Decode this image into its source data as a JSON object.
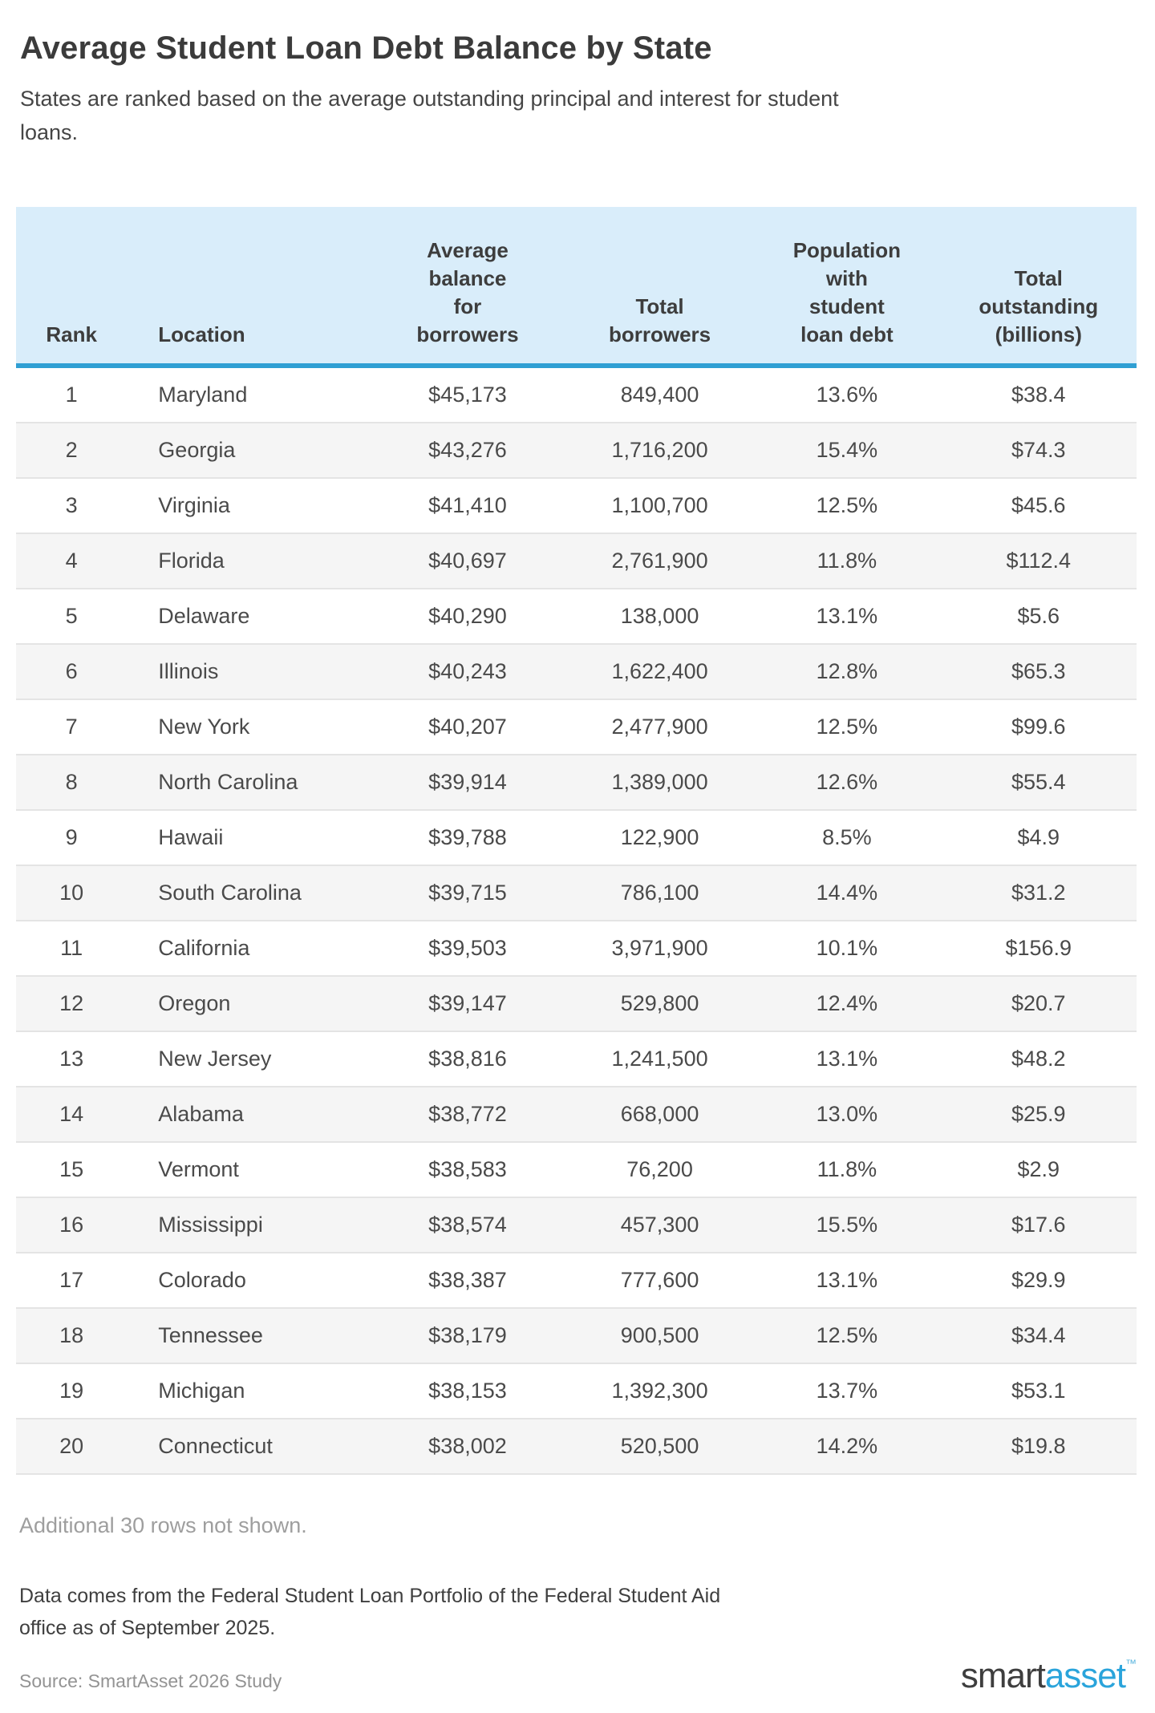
{
  "page": {
    "title": "Average Student Loan Debt Balance by State",
    "subtitle": "States are ranked based on the average outstanding principal and interest for student loans."
  },
  "chart_data": {
    "type": "table",
    "title": "Average Student Loan Debt Balance by State",
    "columns": [
      "Rank",
      "Location",
      "Average\nbalance\nfor\nborrowers",
      "Total\nborrowers",
      "Population\nwith\nstudent\nloan debt",
      "Total\noutstanding\n(billions)"
    ],
    "column_keys": [
      "rank",
      "location",
      "avg-balance",
      "total-borrowers",
      "population-with-debt",
      "total-outstanding"
    ],
    "rows": [
      [
        "1",
        "Maryland",
        "$45,173",
        "849,400",
        "13.6%",
        "$38.4"
      ],
      [
        "2",
        "Georgia",
        "$43,276",
        "1,716,200",
        "15.4%",
        "$74.3"
      ],
      [
        "3",
        "Virginia",
        "$41,410",
        "1,100,700",
        "12.5%",
        "$45.6"
      ],
      [
        "4",
        "Florida",
        "$40,697",
        "2,761,900",
        "11.8%",
        "$112.4"
      ],
      [
        "5",
        "Delaware",
        "$40,290",
        "138,000",
        "13.1%",
        "$5.6"
      ],
      [
        "6",
        "Illinois",
        "$40,243",
        "1,622,400",
        "12.8%",
        "$65.3"
      ],
      [
        "7",
        "New York",
        "$40,207",
        "2,477,900",
        "12.5%",
        "$99.6"
      ],
      [
        "8",
        "North Carolina",
        "$39,914",
        "1,389,000",
        "12.6%",
        "$55.4"
      ],
      [
        "9",
        "Hawaii",
        "$39,788",
        "122,900",
        "8.5%",
        "$4.9"
      ],
      [
        "10",
        "South Carolina",
        "$39,715",
        "786,100",
        "14.4%",
        "$31.2"
      ],
      [
        "11",
        "California",
        "$39,503",
        "3,971,900",
        "10.1%",
        "$156.9"
      ],
      [
        "12",
        "Oregon",
        "$39,147",
        "529,800",
        "12.4%",
        "$20.7"
      ],
      [
        "13",
        "New Jersey",
        "$38,816",
        "1,241,500",
        "13.1%",
        "$48.2"
      ],
      [
        "14",
        "Alabama",
        "$38,772",
        "668,000",
        "13.0%",
        "$25.9"
      ],
      [
        "15",
        "Vermont",
        "$38,583",
        "76,200",
        "11.8%",
        "$2.9"
      ],
      [
        "16",
        "Mississippi",
        "$38,574",
        "457,300",
        "15.5%",
        "$17.6"
      ],
      [
        "17",
        "Colorado",
        "$38,387",
        "777,600",
        "13.1%",
        "$29.9"
      ],
      [
        "18",
        "Tennessee",
        "$38,179",
        "900,500",
        "12.5%",
        "$34.4"
      ],
      [
        "19",
        "Michigan",
        "$38,153",
        "1,392,300",
        "13.7%",
        "$53.1"
      ],
      [
        "20",
        "Connecticut",
        "$38,002",
        "520,500",
        "14.2%",
        "$19.8"
      ]
    ]
  },
  "footer": {
    "additional_note": "Additional 30 rows not shown.",
    "data_note": "Data comes from the Federal Student Loan Portfolio of the Federal Student Aid office as of September 2025.",
    "source": "Source: SmartAsset 2026 Study",
    "logo": {
      "smart": "smart",
      "asset": "asset",
      "tm": "™"
    }
  },
  "colors": {
    "header_background": "#d9edfa",
    "header_underline": "#2f9fd3",
    "alt_row_background": "#f5f5f5",
    "row_separator": "#e4e4e4",
    "logo_blue": "#2aa4db",
    "text_dark": "#3b3b3b",
    "muted_text": "#9e9e9e"
  }
}
